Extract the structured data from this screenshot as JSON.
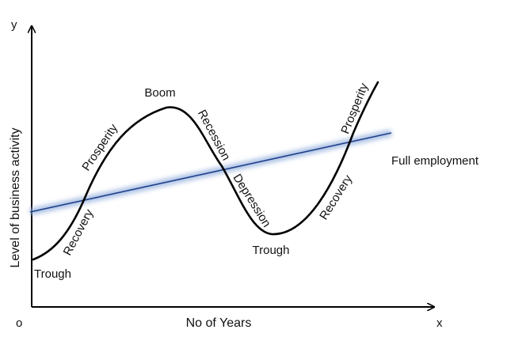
{
  "diagram": {
    "axis_label_y_letter": "y",
    "axis_label_x_letter": "x",
    "origin_label": "o",
    "x_axis_label": "No of Years",
    "y_axis_label": "Level of business activity",
    "trend_label": "Full employment",
    "phase_labels": {
      "trough_left": "Trough",
      "recovery_left": "Recovery",
      "prosperity_left": "Prosperity",
      "boom": "Boom",
      "recession": "Recession",
      "depression": "Depression",
      "trough_right": "Trough",
      "recovery_right": "Recovery",
      "prosperity_right": "Prosperity"
    },
    "colors": {
      "curve": "#000000",
      "axes": "#000000",
      "trend_line": "#1f3f8a",
      "trend_glow": "#9fb8e0"
    }
  }
}
